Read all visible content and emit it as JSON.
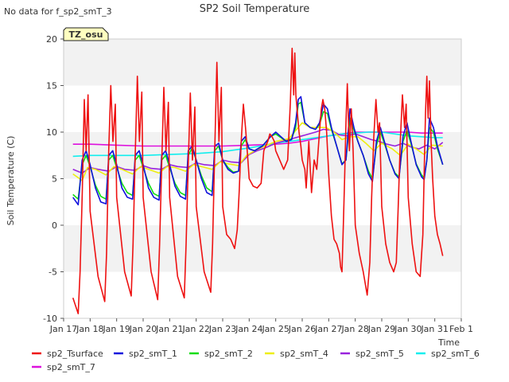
{
  "header": {
    "nodata_note": "No data for f_sp2_smT_3",
    "badge": "TZ_osu"
  },
  "chart_data": {
    "type": "line",
    "title": "SP2 Soil Temperature",
    "xlabel": "Time",
    "ylabel": "Soil Temperature (C)",
    "xlim": [
      17,
      32
    ],
    "ylim": [
      -10,
      20
    ],
    "x_ticks": [
      {
        "v": 17,
        "label": "Jan 17"
      },
      {
        "v": 18,
        "label": "Jan 18"
      },
      {
        "v": 19,
        "label": "Jan 19"
      },
      {
        "v": 20,
        "label": "Jan 20"
      },
      {
        "v": 21,
        "label": "Jan 21"
      },
      {
        "v": 22,
        "label": "Jan 22"
      },
      {
        "v": 23,
        "label": "Jan 23"
      },
      {
        "v": 24,
        "label": "Jan 24"
      },
      {
        "v": 25,
        "label": "Jan 25"
      },
      {
        "v": 26,
        "label": "Jan 26"
      },
      {
        "v": 27,
        "label": "Jan 27"
      },
      {
        "v": 28,
        "label": "Jan 28"
      },
      {
        "v": 29,
        "label": "Jan 29"
      },
      {
        "v": 30,
        "label": "Jan 30"
      },
      {
        "v": 31,
        "label": "Jan 31"
      },
      {
        "v": 32,
        "label": "Feb 1"
      }
    ],
    "y_ticks": [
      {
        "v": -10,
        "label": "-10"
      },
      {
        "v": -5,
        "label": "-5"
      },
      {
        "v": 0,
        "label": "0"
      },
      {
        "v": 5,
        "label": "5"
      },
      {
        "v": 10,
        "label": "10"
      },
      {
        "v": 15,
        "label": "15"
      },
      {
        "v": 20,
        "label": "20"
      }
    ],
    "grid": "horizontal bands",
    "legend_position": "bottom",
    "series": [
      {
        "name": "sp2_Tsurface",
        "color": "#ee1111",
        "width": 1.6,
        "x": [
          17.35,
          17.55,
          17.62,
          17.7,
          17.78,
          17.85,
          17.92,
          18.0,
          18.3,
          18.55,
          18.62,
          18.7,
          18.78,
          18.86,
          18.95,
          19.0,
          19.3,
          19.55,
          19.62,
          19.7,
          19.78,
          19.86,
          19.95,
          20.0,
          20.3,
          20.55,
          20.62,
          20.7,
          20.78,
          20.86,
          20.95,
          21.0,
          21.3,
          21.55,
          21.62,
          21.7,
          21.78,
          21.86,
          21.95,
          22.0,
          22.3,
          22.55,
          22.62,
          22.7,
          22.78,
          22.86,
          22.95,
          23.0,
          23.15,
          23.3,
          23.45,
          23.55,
          23.62,
          23.7,
          23.78,
          23.86,
          23.95,
          24.0,
          24.15,
          24.3,
          24.45,
          24.55,
          24.62,
          24.7,
          24.78,
          24.86,
          24.95,
          25.0,
          25.15,
          25.3,
          25.45,
          25.55,
          25.62,
          25.68,
          25.72,
          25.76,
          25.82,
          25.88,
          25.95,
          26.0,
          26.1,
          26.15,
          26.25,
          26.35,
          26.45,
          26.55,
          26.65,
          26.72,
          26.78,
          26.85,
          26.92,
          27.0,
          27.1,
          27.2,
          27.3,
          27.4,
          27.45,
          27.5,
          27.55,
          27.6,
          27.65,
          27.7,
          27.78,
          27.85,
          27.92,
          28.0,
          28.15,
          28.3,
          28.45,
          28.55,
          28.62,
          28.7,
          28.78,
          28.86,
          28.92,
          29.0,
          29.15,
          29.3,
          29.45,
          29.55,
          29.62,
          29.7,
          29.78,
          29.86,
          29.92,
          30.0,
          30.15,
          30.3,
          30.45,
          30.55,
          30.6,
          30.65,
          30.7,
          30.75,
          30.8,
          30.86,
          30.92,
          31.0,
          31.1,
          31.2,
          31.3
        ],
        "y": [
          -7.8,
          -9.5,
          -5,
          3,
          13.5,
          8,
          14,
          1.5,
          -5.5,
          -8.2,
          -3,
          8,
          15,
          9,
          13,
          3,
          -5,
          -7.6,
          -2,
          7.5,
          16,
          9,
          14.3,
          3,
          -5,
          -8,
          -2,
          6.5,
          14.8,
          8,
          13.2,
          3,
          -5.5,
          -7.8,
          -2,
          6.5,
          14.2,
          7,
          12.7,
          2,
          -5,
          -7.2,
          -2,
          8,
          17.5,
          9,
          14.8,
          2,
          -1,
          -1.5,
          -2.5,
          -0.5,
          3.5,
          9,
          13,
          10.5,
          7,
          5,
          4.2,
          4,
          4.5,
          8,
          8.5,
          9,
          9.8,
          9.5,
          9,
          8,
          7,
          6,
          7,
          13,
          19,
          14,
          18.5,
          14,
          12,
          10,
          8.5,
          7,
          6,
          4,
          9,
          3.5,
          7,
          6,
          10,
          12.5,
          13.5,
          12.5,
          10,
          5.5,
          1,
          -1.5,
          -2,
          -3,
          -4.5,
          -5,
          0,
          5,
          11,
          15.2,
          8,
          12.5,
          8,
          0,
          -3,
          -5,
          -7.5,
          -4,
          3,
          9.5,
          13.5,
          10,
          11,
          2,
          -2,
          -4,
          -5,
          -4,
          2,
          9,
          14,
          10.5,
          13,
          3,
          -2,
          -5,
          -5.5,
          -1,
          5.5,
          12,
          16,
          11.5,
          15.5,
          9,
          5,
          1,
          -1,
          -2,
          -3.3
        ]
      },
      {
        "name": "sp2_smT_1",
        "color": "#1111dd",
        "width": 1.6,
        "x": [
          17.35,
          17.55,
          17.7,
          17.85,
          18.0,
          18.2,
          18.4,
          18.6,
          18.7,
          18.85,
          19.0,
          19.2,
          19.4,
          19.6,
          19.7,
          19.85,
          20.0,
          20.2,
          20.4,
          20.6,
          20.7,
          20.85,
          21.0,
          21.2,
          21.4,
          21.6,
          21.7,
          21.85,
          22.0,
          22.2,
          22.4,
          22.6,
          22.7,
          22.85,
          23.0,
          23.2,
          23.4,
          23.6,
          23.7,
          23.85,
          24.0,
          24.2,
          24.5,
          24.8,
          25.0,
          25.2,
          25.4,
          25.6,
          25.75,
          25.85,
          25.95,
          26.1,
          26.3,
          26.5,
          26.65,
          26.8,
          26.95,
          27.1,
          27.3,
          27.5,
          27.65,
          27.8,
          27.95,
          28.1,
          28.3,
          28.5,
          28.65,
          28.8,
          28.95,
          29.1,
          29.3,
          29.5,
          29.65,
          29.8,
          29.95,
          30.1,
          30.3,
          30.5,
          30.6,
          30.7,
          30.8,
          30.95,
          31.1,
          31.3
        ],
        "y": [
          3,
          2.2,
          7,
          8,
          6.5,
          4,
          2.5,
          2.3,
          7.5,
          8,
          6.5,
          4,
          3,
          2.8,
          7.5,
          8,
          6.5,
          4,
          3,
          2.7,
          7.5,
          8,
          6.5,
          4.2,
          3.1,
          2.8,
          8,
          8.5,
          7,
          5,
          3.5,
          3.2,
          8.5,
          8.8,
          7,
          6,
          5.6,
          5.8,
          9,
          9.5,
          8.2,
          8,
          8.5,
          9.5,
          10,
          9.5,
          9,
          9.2,
          11,
          13.5,
          13.8,
          11,
          10.5,
          10.3,
          11,
          13,
          12.5,
          10.5,
          8.5,
          6.5,
          7,
          12.5,
          10.5,
          9,
          7.5,
          5.5,
          4.7,
          9,
          10.5,
          9,
          7,
          5.5,
          5,
          9.5,
          11,
          9,
          6.5,
          5.2,
          4.9,
          7,
          11.5,
          10.5,
          8.5,
          6.5
        ]
      },
      {
        "name": "sp2_smT_2",
        "color": "#11dd11",
        "width": 1.6,
        "x": [
          17.35,
          17.55,
          17.7,
          17.85,
          18.0,
          18.2,
          18.4,
          18.6,
          18.7,
          18.85,
          19.0,
          19.2,
          19.4,
          19.6,
          19.7,
          19.85,
          20.0,
          20.2,
          20.4,
          20.6,
          20.7,
          20.85,
          21.0,
          21.2,
          21.4,
          21.6,
          21.7,
          21.85,
          22.0,
          22.2,
          22.4,
          22.6,
          22.7,
          22.85,
          23.0,
          23.2,
          23.4,
          23.6,
          23.7,
          23.85,
          24.0,
          24.2,
          24.5,
          24.8,
          25.0,
          25.2,
          25.4,
          25.6,
          25.75,
          25.85,
          25.95,
          26.1,
          26.3,
          26.5,
          26.65,
          26.8,
          26.95,
          27.1,
          27.3,
          27.5,
          27.65,
          27.8,
          27.95,
          28.1,
          28.3,
          28.5,
          28.65,
          28.8,
          28.95,
          29.1,
          29.3,
          29.5,
          29.65,
          29.8,
          29.95,
          30.1,
          30.3,
          30.5,
          30.6,
          30.7,
          30.8,
          30.95,
          31.1,
          31.3
        ],
        "y": [
          3.3,
          2.8,
          6.5,
          7.5,
          6.3,
          4.3,
          3.1,
          2.8,
          7,
          7.5,
          6.2,
          4.5,
          3.5,
          3.2,
          7,
          7.5,
          6.2,
          4.5,
          3.4,
          3.1,
          7,
          7.5,
          6.2,
          4.5,
          3.5,
          3.2,
          7.5,
          8.3,
          7,
          5.3,
          4,
          3.6,
          8,
          8.5,
          7,
          6.2,
          5.7,
          5.8,
          8.5,
          9.2,
          8.2,
          8,
          8.5,
          9.5,
          9.8,
          9.4,
          9,
          9.3,
          10.5,
          13,
          13.2,
          11,
          10.5,
          10.3,
          10.8,
          12.2,
          12,
          10.3,
          8.5,
          6.6,
          7,
          11.5,
          10.2,
          9,
          7.5,
          5.8,
          5,
          8.6,
          10,
          8.8,
          7,
          5.6,
          5.2,
          9,
          10.2,
          8.8,
          6.6,
          5.4,
          5.1,
          7,
          10.5,
          10,
          8.2,
          6.5
        ]
      },
      {
        "name": "sp2_smT_4",
        "color": "#eeee11",
        "width": 1.6,
        "x": [
          17.35,
          17.7,
          17.9,
          18.2,
          18.6,
          18.9,
          19.2,
          19.6,
          19.9,
          20.2,
          20.6,
          20.9,
          21.2,
          21.6,
          21.9,
          22.2,
          22.6,
          22.9,
          23.2,
          23.6,
          23.9,
          24.2,
          24.6,
          25.0,
          25.5,
          25.85,
          26.0,
          26.3,
          26.6,
          26.9,
          27.2,
          27.5,
          27.8,
          28.1,
          28.4,
          28.7,
          29.0,
          29.4,
          29.7,
          30.0,
          30.3,
          30.6,
          30.9,
          31.3
        ],
        "y": [
          5.5,
          4.8,
          6.2,
          6,
          5.4,
          6.3,
          6,
          5.5,
          6.3,
          6,
          5.6,
          6.3,
          6.2,
          5.8,
          6.5,
          6.3,
          6,
          6.8,
          6.6,
          6.4,
          7.5,
          8,
          8.5,
          9,
          9.3,
          10.5,
          11,
          10.5,
          10.5,
          10.5,
          10,
          9.2,
          9.5,
          9.5,
          8.8,
          8,
          8.8,
          8.2,
          7.5,
          8.7,
          8.2,
          7.6,
          8.6,
          8.5
        ]
      },
      {
        "name": "sp2_smT_5",
        "color": "#9922dd",
        "width": 1.6,
        "x": [
          17.35,
          17.7,
          18.0,
          18.3,
          18.7,
          19.0,
          19.3,
          19.7,
          20.0,
          20.3,
          20.7,
          21.0,
          21.3,
          21.7,
          22.0,
          22.3,
          22.7,
          23.0,
          23.3,
          23.7,
          24.0,
          24.3,
          24.6,
          25.0,
          25.5,
          26.0,
          26.5,
          26.8,
          27.1,
          27.4,
          27.7,
          28.0,
          28.3,
          28.6,
          28.9,
          29.2,
          29.5,
          29.8,
          30.1,
          30.4,
          30.7,
          31.0,
          31.3
        ],
        "y": [
          6,
          5.6,
          6.2,
          6,
          5.8,
          6.3,
          6,
          5.9,
          6.4,
          6.1,
          6,
          6.5,
          6.3,
          6.2,
          6.7,
          6.5,
          6.4,
          7,
          6.8,
          6.7,
          7.6,
          8,
          8.3,
          8.8,
          9.2,
          9.6,
          10,
          10.3,
          10.2,
          9.7,
          9.6,
          9.8,
          9.5,
          9.2,
          9,
          8.7,
          8.5,
          8.8,
          8.4,
          8.2,
          8.6,
          8.2,
          8.9
        ]
      },
      {
        "name": "sp2_smT_6",
        "color": "#11eeee",
        "width": 1.6,
        "x": [
          17.35,
          18,
          19,
          20,
          21,
          22,
          23,
          23.5,
          24,
          25,
          26,
          26.5,
          27,
          27.5,
          28,
          28.5,
          29,
          29.5,
          30,
          30.5,
          31,
          31.3
        ],
        "y": [
          7.4,
          7.5,
          7.5,
          7.5,
          7.6,
          7.7,
          7.9,
          8.1,
          8.3,
          8.8,
          9.2,
          9.4,
          9.6,
          9.8,
          9.9,
          10,
          10,
          9.8,
          9.6,
          9.5,
          9.4,
          9.4
        ]
      },
      {
        "name": "sp2_smT_7",
        "color": "#dd11dd",
        "width": 1.6,
        "x": [
          17.35,
          18,
          19,
          20,
          21,
          22,
          23,
          24,
          25,
          25.5,
          26,
          26.5,
          27,
          27.5,
          28,
          28.5,
          29,
          29.5,
          30,
          30.5,
          31,
          31.3
        ],
        "y": [
          8.7,
          8.7,
          8.6,
          8.5,
          8.5,
          8.5,
          8.5,
          8.6,
          8.7,
          8.8,
          9,
          9.3,
          9.6,
          9.8,
          10,
          10,
          10,
          10,
          10,
          9.9,
          9.9,
          9.9
        ]
      }
    ]
  }
}
